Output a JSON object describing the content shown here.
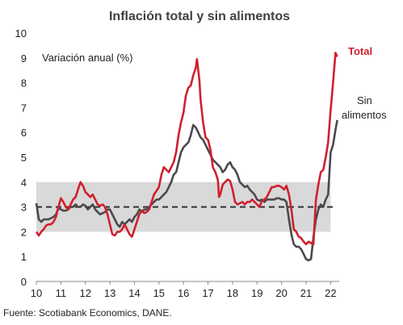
{
  "chart_data": {
    "type": "line",
    "title": "Inflación total y sin alimentos",
    "annotation": "Variación anual (%)",
    "source": "Fuente: Scotiabank Economics, DANE.",
    "xlim": [
      2010,
      2022.35
    ],
    "ylim": [
      0,
      10
    ],
    "x_ticks": [
      {
        "value": 2010,
        "label": "10"
      },
      {
        "value": 2011,
        "label": "11"
      },
      {
        "value": 2012,
        "label": "12"
      },
      {
        "value": 2013,
        "label": "13"
      },
      {
        "value": 2014,
        "label": "14"
      },
      {
        "value": 2015,
        "label": "15"
      },
      {
        "value": 2016,
        "label": "16"
      },
      {
        "value": 2017,
        "label": "17"
      },
      {
        "value": 2018,
        "label": "18"
      },
      {
        "value": 2019,
        "label": "19"
      },
      {
        "value": 2020,
        "label": "20"
      },
      {
        "value": 2021,
        "label": "21"
      },
      {
        "value": 2022,
        "label": "22"
      }
    ],
    "y_ticks": [
      0,
      1,
      2,
      3,
      4,
      5,
      6,
      7,
      8,
      9,
      10
    ],
    "target_band": [
      2,
      4
    ],
    "target_line": 3,
    "colors": {
      "total": "#d0202e",
      "sin_alimentos": "#4a4a4a",
      "band": "#d9d9d9",
      "target": "#333333"
    },
    "series": [
      {
        "name": "Total",
        "color": "#d0202e",
        "points": [
          [
            2010.0,
            2.0
          ],
          [
            2010.1,
            1.85
          ],
          [
            2010.2,
            2.0
          ],
          [
            2010.3,
            2.1
          ],
          [
            2010.4,
            2.25
          ],
          [
            2010.5,
            2.3
          ],
          [
            2010.6,
            2.3
          ],
          [
            2010.7,
            2.4
          ],
          [
            2010.8,
            2.6
          ],
          [
            2010.9,
            3.0
          ],
          [
            2011.0,
            3.35
          ],
          [
            2011.1,
            3.2
          ],
          [
            2011.2,
            3.0
          ],
          [
            2011.3,
            2.9
          ],
          [
            2011.4,
            3.1
          ],
          [
            2011.5,
            3.3
          ],
          [
            2011.6,
            3.4
          ],
          [
            2011.7,
            3.7
          ],
          [
            2011.8,
            4.0
          ],
          [
            2011.9,
            3.85
          ],
          [
            2012.0,
            3.6
          ],
          [
            2012.1,
            3.5
          ],
          [
            2012.2,
            3.4
          ],
          [
            2012.3,
            3.5
          ],
          [
            2012.4,
            3.3
          ],
          [
            2012.5,
            3.1
          ],
          [
            2012.6,
            3.05
          ],
          [
            2012.7,
            3.1
          ],
          [
            2012.8,
            3.0
          ],
          [
            2012.9,
            2.7
          ],
          [
            2013.0,
            2.3
          ],
          [
            2013.1,
            1.9
          ],
          [
            2013.2,
            1.85
          ],
          [
            2013.3,
            2.0
          ],
          [
            2013.4,
            2.0
          ],
          [
            2013.5,
            2.1
          ],
          [
            2013.6,
            2.3
          ],
          [
            2013.7,
            2.1
          ],
          [
            2013.8,
            1.9
          ],
          [
            2013.9,
            1.8
          ],
          [
            2014.0,
            2.1
          ],
          [
            2014.1,
            2.4
          ],
          [
            2014.2,
            2.7
          ],
          [
            2014.3,
            2.85
          ],
          [
            2014.4,
            2.75
          ],
          [
            2014.5,
            2.8
          ],
          [
            2014.6,
            2.9
          ],
          [
            2014.7,
            3.2
          ],
          [
            2014.8,
            3.5
          ],
          [
            2014.9,
            3.65
          ],
          [
            2015.0,
            3.8
          ],
          [
            2015.1,
            4.3
          ],
          [
            2015.2,
            4.6
          ],
          [
            2015.3,
            4.5
          ],
          [
            2015.4,
            4.4
          ],
          [
            2015.5,
            4.6
          ],
          [
            2015.6,
            4.8
          ],
          [
            2015.7,
            5.2
          ],
          [
            2015.8,
            5.9
          ],
          [
            2015.9,
            6.4
          ],
          [
            2016.0,
            6.8
          ],
          [
            2016.1,
            7.5
          ],
          [
            2016.2,
            7.8
          ],
          [
            2016.3,
            7.9
          ],
          [
            2016.4,
            8.3
          ],
          [
            2016.5,
            8.6
          ],
          [
            2016.55,
            8.95
          ],
          [
            2016.65,
            8.1
          ],
          [
            2016.7,
            7.3
          ],
          [
            2016.8,
            6.4
          ],
          [
            2016.9,
            5.8
          ],
          [
            2017.0,
            5.7
          ],
          [
            2017.1,
            5.3
          ],
          [
            2017.2,
            4.6
          ],
          [
            2017.3,
            4.4
          ],
          [
            2017.4,
            4.1
          ],
          [
            2017.45,
            3.4
          ],
          [
            2017.5,
            3.5
          ],
          [
            2017.6,
            3.9
          ],
          [
            2017.7,
            4.0
          ],
          [
            2017.8,
            4.1
          ],
          [
            2017.9,
            4.05
          ],
          [
            2018.0,
            3.7
          ],
          [
            2018.1,
            3.2
          ],
          [
            2018.2,
            3.1
          ],
          [
            2018.3,
            3.15
          ],
          [
            2018.4,
            3.2
          ],
          [
            2018.5,
            3.1
          ],
          [
            2018.6,
            3.2
          ],
          [
            2018.7,
            3.2
          ],
          [
            2018.8,
            3.3
          ],
          [
            2018.9,
            3.2
          ],
          [
            2019.0,
            3.1
          ],
          [
            2019.1,
            3.0
          ],
          [
            2019.2,
            3.25
          ],
          [
            2019.3,
            3.3
          ],
          [
            2019.4,
            3.4
          ],
          [
            2019.5,
            3.6
          ],
          [
            2019.6,
            3.8
          ],
          [
            2019.7,
            3.8
          ],
          [
            2019.8,
            3.85
          ],
          [
            2019.9,
            3.85
          ],
          [
            2020.0,
            3.8
          ],
          [
            2020.1,
            3.7
          ],
          [
            2020.2,
            3.85
          ],
          [
            2020.3,
            3.5
          ],
          [
            2020.4,
            2.9
          ],
          [
            2020.5,
            2.1
          ],
          [
            2020.6,
            2.0
          ],
          [
            2020.7,
            1.8
          ],
          [
            2020.8,
            1.75
          ],
          [
            2020.9,
            1.6
          ],
          [
            2021.0,
            1.5
          ],
          [
            2021.1,
            1.6
          ],
          [
            2021.2,
            1.55
          ],
          [
            2021.3,
            1.5
          ],
          [
            2021.4,
            3.3
          ],
          [
            2021.5,
            3.9
          ],
          [
            2021.6,
            4.4
          ],
          [
            2021.7,
            4.5
          ],
          [
            2021.8,
            5.0
          ],
          [
            2021.9,
            5.6
          ],
          [
            2022.0,
            6.9
          ],
          [
            2022.1,
            8.0
          ],
          [
            2022.2,
            9.2
          ],
          [
            2022.27,
            9.05
          ]
        ]
      },
      {
        "name": "Sin alimentos",
        "color": "#4a4a4a",
        "points": [
          [
            2010.0,
            3.15
          ],
          [
            2010.1,
            2.5
          ],
          [
            2010.2,
            2.4
          ],
          [
            2010.3,
            2.5
          ],
          [
            2010.4,
            2.5
          ],
          [
            2010.5,
            2.5
          ],
          [
            2010.6,
            2.55
          ],
          [
            2010.7,
            2.6
          ],
          [
            2010.8,
            2.7
          ],
          [
            2010.9,
            2.95
          ],
          [
            2011.0,
            2.9
          ],
          [
            2011.1,
            2.85
          ],
          [
            2011.2,
            2.85
          ],
          [
            2011.3,
            2.9
          ],
          [
            2011.4,
            3.0
          ],
          [
            2011.5,
            3.0
          ],
          [
            2011.6,
            3.1
          ],
          [
            2011.7,
            3.0
          ],
          [
            2011.8,
            3.0
          ],
          [
            2011.9,
            3.1
          ],
          [
            2012.0,
            3.05
          ],
          [
            2012.1,
            2.9
          ],
          [
            2012.2,
            3.0
          ],
          [
            2012.3,
            3.1
          ],
          [
            2012.4,
            2.9
          ],
          [
            2012.5,
            2.8
          ],
          [
            2012.6,
            2.7
          ],
          [
            2012.7,
            2.75
          ],
          [
            2012.8,
            2.8
          ],
          [
            2012.9,
            2.9
          ],
          [
            2013.0,
            2.9
          ],
          [
            2013.1,
            2.7
          ],
          [
            2013.2,
            2.5
          ],
          [
            2013.3,
            2.3
          ],
          [
            2013.4,
            2.2
          ],
          [
            2013.5,
            2.4
          ],
          [
            2013.6,
            2.3
          ],
          [
            2013.7,
            2.4
          ],
          [
            2013.8,
            2.5
          ],
          [
            2013.9,
            2.4
          ],
          [
            2014.0,
            2.6
          ],
          [
            2014.1,
            2.7
          ],
          [
            2014.2,
            2.9
          ],
          [
            2014.3,
            2.8
          ],
          [
            2014.4,
            2.9
          ],
          [
            2014.5,
            2.9
          ],
          [
            2014.6,
            3.0
          ],
          [
            2014.7,
            3.1
          ],
          [
            2014.8,
            3.2
          ],
          [
            2014.9,
            3.3
          ],
          [
            2015.0,
            3.3
          ],
          [
            2015.1,
            3.4
          ],
          [
            2015.2,
            3.5
          ],
          [
            2015.3,
            3.6
          ],
          [
            2015.4,
            3.8
          ],
          [
            2015.5,
            4.0
          ],
          [
            2015.6,
            4.3
          ],
          [
            2015.7,
            4.4
          ],
          [
            2015.8,
            4.8
          ],
          [
            2015.9,
            5.2
          ],
          [
            2016.0,
            5.4
          ],
          [
            2016.1,
            5.5
          ],
          [
            2016.2,
            5.6
          ],
          [
            2016.3,
            5.9
          ],
          [
            2016.4,
            6.3
          ],
          [
            2016.5,
            6.2
          ],
          [
            2016.6,
            6.0
          ],
          [
            2016.7,
            5.8
          ],
          [
            2016.8,
            5.7
          ],
          [
            2016.9,
            5.5
          ],
          [
            2017.0,
            5.3
          ],
          [
            2017.1,
            5.1
          ],
          [
            2017.2,
            4.9
          ],
          [
            2017.3,
            4.8
          ],
          [
            2017.4,
            4.7
          ],
          [
            2017.5,
            4.6
          ],
          [
            2017.6,
            4.4
          ],
          [
            2017.7,
            4.5
          ],
          [
            2017.8,
            4.7
          ],
          [
            2017.9,
            4.8
          ],
          [
            2018.0,
            4.6
          ],
          [
            2018.1,
            4.5
          ],
          [
            2018.2,
            4.3
          ],
          [
            2018.3,
            4.0
          ],
          [
            2018.4,
            3.9
          ],
          [
            2018.5,
            3.8
          ],
          [
            2018.6,
            3.85
          ],
          [
            2018.7,
            3.7
          ],
          [
            2018.8,
            3.6
          ],
          [
            2018.9,
            3.5
          ],
          [
            2019.0,
            3.3
          ],
          [
            2019.1,
            3.25
          ],
          [
            2019.2,
            3.3
          ],
          [
            2019.3,
            3.2
          ],
          [
            2019.4,
            3.3
          ],
          [
            2019.5,
            3.3
          ],
          [
            2019.6,
            3.3
          ],
          [
            2019.7,
            3.3
          ],
          [
            2019.8,
            3.35
          ],
          [
            2019.9,
            3.35
          ],
          [
            2020.0,
            3.3
          ],
          [
            2020.1,
            3.3
          ],
          [
            2020.2,
            3.2
          ],
          [
            2020.3,
            2.5
          ],
          [
            2020.4,
            1.9
          ],
          [
            2020.5,
            1.5
          ],
          [
            2020.6,
            1.4
          ],
          [
            2020.7,
            1.4
          ],
          [
            2020.8,
            1.3
          ],
          [
            2020.9,
            1.1
          ],
          [
            2021.0,
            0.9
          ],
          [
            2021.1,
            0.85
          ],
          [
            2021.2,
            0.9
          ],
          [
            2021.3,
            1.8
          ],
          [
            2021.4,
            2.5
          ],
          [
            2021.5,
            2.9
          ],
          [
            2021.6,
            3.1
          ],
          [
            2021.7,
            3.0
          ],
          [
            2021.8,
            3.3
          ],
          [
            2021.9,
            3.5
          ],
          [
            2022.0,
            5.2
          ],
          [
            2022.1,
            5.5
          ],
          [
            2022.2,
            6.1
          ],
          [
            2022.27,
            6.5
          ]
        ]
      }
    ]
  },
  "labels": {
    "total": "Total",
    "sin_line1": "Sin",
    "sin_line2": "alimentos"
  }
}
